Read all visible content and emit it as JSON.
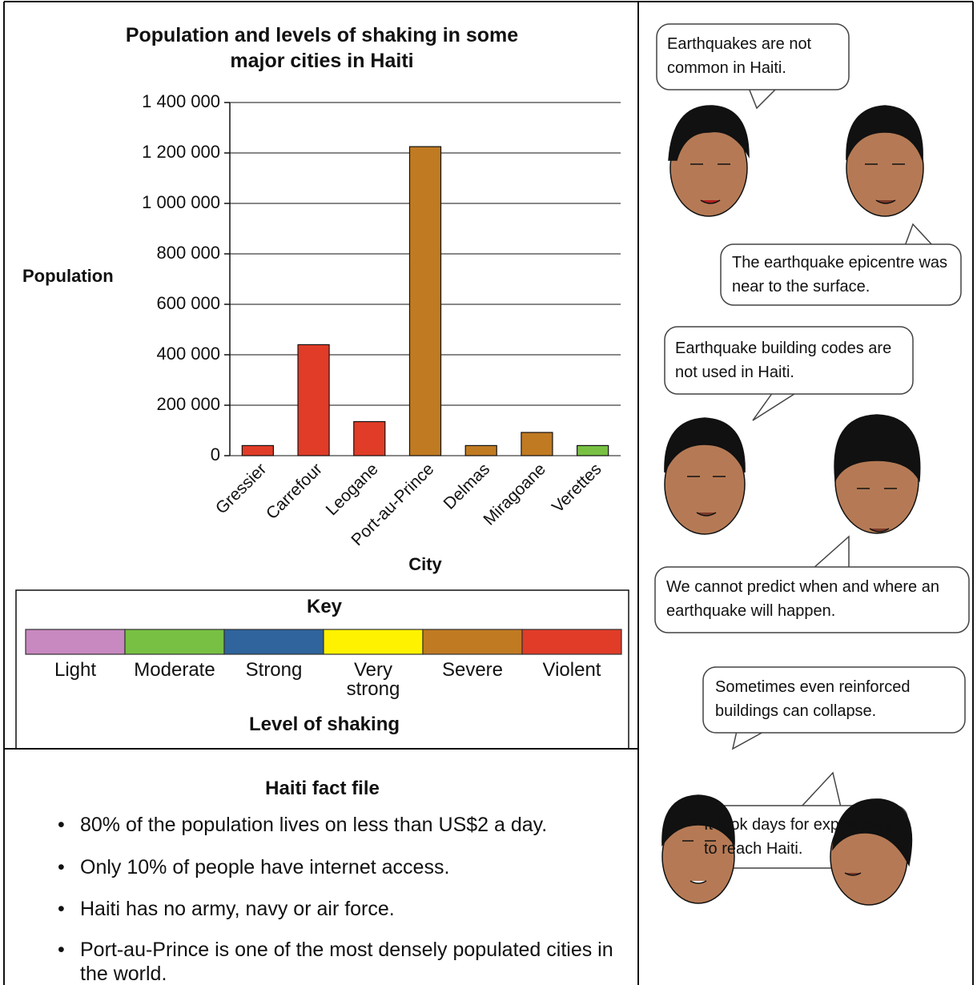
{
  "chart_data": {
    "type": "bar",
    "title": "Population and levels of shaking in some major cities in Haiti",
    "y_label": "Population",
    "x_label": "City",
    "categories": [
      "Gressier",
      "Carrefour",
      "Leogane",
      "Port-au-Prince",
      "Delmas",
      "Miragoane",
      "Verettes"
    ],
    "values": [
      40000,
      440000,
      135000,
      1225000,
      40000,
      92000,
      40000
    ],
    "colors": [
      "#e03c28",
      "#e03c28",
      "#e03c28",
      "#c07a22",
      "#c07a22",
      "#c07a22",
      "#78c043"
    ],
    "ylim": [
      0,
      1400000
    ],
    "yticks": [
      0,
      {
        "value": 200000,
        "label": "200 000"
      },
      {
        "value": 400000,
        "label": "400 000"
      },
      {
        "value": 600000,
        "label": "600 000"
      },
      {
        "value": 800000,
        "label": "800 000"
      },
      {
        "value": 1000000,
        "label": "1 000 000"
      },
      {
        "value": 1200000,
        "label": "1 200 000"
      },
      {
        "value": 1400000,
        "label": "1 400 000"
      }
    ],
    "grid": true
  },
  "key": {
    "title": "Key",
    "axis_label": "Level of shaking",
    "levels": [
      {
        "label": "Light",
        "color": "#c888c0"
      },
      {
        "label": "Moderate",
        "color": "#78c043"
      },
      {
        "label": "Strong",
        "color": "#2f649c"
      },
      {
        "label": "Very strong",
        "color": "#fff200"
      },
      {
        "label": "Severe",
        "color": "#c07a22"
      },
      {
        "label": "Violent",
        "color": "#e03c28"
      }
    ]
  },
  "fact_file": {
    "title": "Haiti fact file",
    "items": [
      "80% of the population lives on less than US$2 a day.",
      "Only 10% of people have internet access.",
      "Haiti has no army, navy or air force.",
      "Port-au-Prince is one of the most densely populated cities in the world."
    ]
  },
  "speech_bubbles": [
    "Earthquakes are not common in Haiti.",
    "The earthquake epicentre was near to the surface.",
    "Earthquake building codes are not used in Haiti.",
    "We cannot predict when and where an earthquake will happen.",
    "Sometimes even reinforced buildings can collapse.",
    "It took days for expert help to reach Haiti."
  ]
}
